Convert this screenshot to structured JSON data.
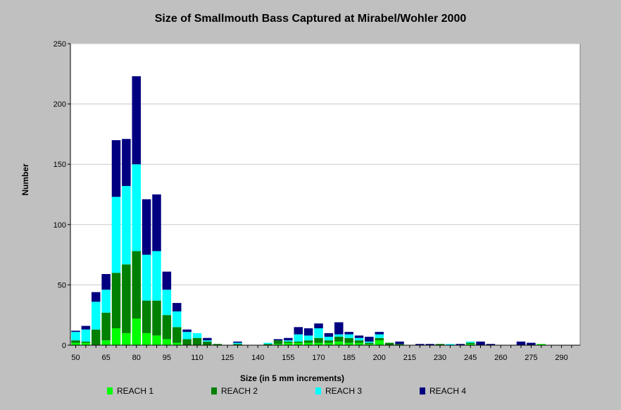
{
  "chart_data": {
    "type": "bar",
    "stacked": true,
    "title": "Size of Smallmouth Bass Captured at Mirabel/Wohler 2000",
    "xlabel": "Size (in 5 mm increments)",
    "ylabel": "Number",
    "ylim": [
      0,
      250
    ],
    "yticks": [
      0,
      50,
      100,
      150,
      200,
      250
    ],
    "xtick_labels": [
      "50",
      "65",
      "80",
      "95",
      "110",
      "125",
      "140",
      "155",
      "170",
      "185",
      "200",
      "215",
      "230",
      "245",
      "260",
      "275",
      "290"
    ],
    "grid": true,
    "legend_position": "bottom",
    "categories": [
      50,
      55,
      60,
      65,
      70,
      75,
      80,
      85,
      90,
      95,
      100,
      105,
      110,
      115,
      120,
      125,
      130,
      135,
      140,
      145,
      150,
      155,
      160,
      165,
      170,
      175,
      180,
      185,
      190,
      195,
      200,
      205,
      210,
      215,
      220,
      225,
      230,
      235,
      240,
      245,
      250,
      255,
      260,
      265,
      270,
      275,
      280,
      285,
      290,
      295
    ],
    "series": [
      {
        "name": "REACH 1",
        "color": "#00ff00",
        "values": [
          2,
          2,
          0,
          4,
          14,
          10,
          22,
          10,
          8,
          5,
          2,
          0,
          0,
          0,
          0,
          0,
          0,
          0,
          0,
          0,
          1,
          2,
          2,
          2,
          2,
          2,
          3,
          2,
          2,
          1,
          4,
          0,
          0,
          0,
          0,
          0,
          0,
          0,
          0,
          1,
          0,
          0,
          0,
          0,
          0,
          0,
          1,
          0,
          0,
          0
        ]
      },
      {
        "name": "REACH 2",
        "color": "#008000",
        "values": [
          2,
          1,
          13,
          23,
          46,
          57,
          56,
          27,
          29,
          20,
          13,
          5,
          6,
          3,
          1,
          0,
          1,
          0,
          0,
          1,
          3,
          1,
          1,
          2,
          4,
          2,
          4,
          4,
          2,
          1,
          2,
          2,
          1,
          0,
          0,
          0,
          1,
          0,
          0,
          1,
          0,
          0,
          0,
          0,
          0,
          0,
          0,
          0,
          0,
          0
        ]
      },
      {
        "name": "REACH 3",
        "color": "#00ffff",
        "values": [
          7,
          10,
          23,
          19,
          63,
          65,
          72,
          38,
          41,
          21,
          13,
          6,
          4,
          1,
          0,
          0,
          1,
          0,
          0,
          1,
          0,
          1,
          6,
          4,
          8,
          3,
          2,
          3,
          2,
          1,
          3,
          0,
          0,
          0,
          0,
          0,
          0,
          1,
          0,
          1,
          0,
          0,
          0,
          0,
          0,
          0,
          0,
          0,
          0,
          0
        ]
      },
      {
        "name": "REACH 4",
        "color": "#000080",
        "values": [
          1,
          3,
          8,
          13,
          47,
          39,
          73,
          46,
          47,
          15,
          7,
          2,
          0,
          2,
          0,
          0,
          1,
          0,
          0,
          0,
          1,
          2,
          6,
          6,
          4,
          3,
          10,
          2,
          2,
          4,
          2,
          0,
          2,
          0,
          1,
          1,
          0,
          0,
          1,
          0,
          3,
          1,
          0,
          0,
          3,
          2,
          0,
          0,
          0,
          0
        ]
      }
    ]
  }
}
